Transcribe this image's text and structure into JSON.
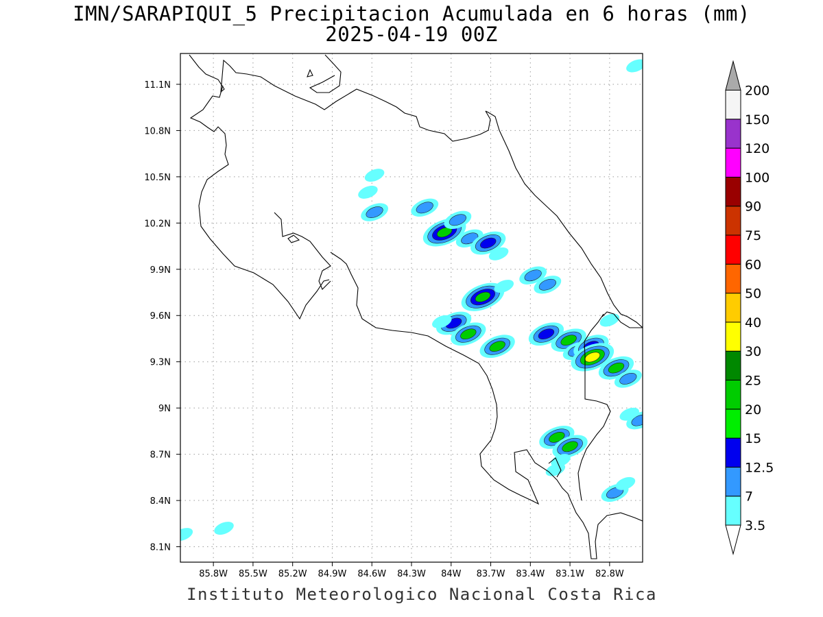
{
  "title": {
    "line1": "IMN/SARAPIQUI_5 Precipitacion Acumulada en 6 horas (mm)",
    "line2": "2025-04-19 00Z"
  },
  "footer": "Instituto Meteorologico Nacional Costa Rica",
  "axes": {
    "lon_range": [
      -86.05,
      -82.55
    ],
    "lat_range": [
      8.0,
      11.3
    ],
    "lon_ticks": [
      -85.8,
      -85.5,
      -85.2,
      -84.9,
      -84.6,
      -84.3,
      -84.0,
      -83.7,
      -83.4,
      -83.1,
      -82.8
    ],
    "lon_tick_labels": [
      "85.8W",
      "85.5W",
      "85.2W",
      "84.9W",
      "84.6W",
      "84.3W",
      "84W",
      "83.7W",
      "83.4W",
      "83.1W",
      "82.8W"
    ],
    "lat_ticks": [
      8.1,
      8.4,
      8.7,
      9.0,
      9.3,
      9.6,
      9.9,
      10.2,
      10.5,
      10.8,
      11.1
    ],
    "lat_tick_labels": [
      "8.1N",
      "8.4N",
      "8.7N",
      "9N",
      "9.3N",
      "9.6N",
      "9.9N",
      "10.2N",
      "10.5N",
      "10.8N",
      "11.1N"
    ],
    "grid": "dotted"
  },
  "colorbar": {
    "label_values": [
      "3.5",
      "7",
      "12.5",
      "15",
      "20",
      "25",
      "30",
      "40",
      "50",
      "60",
      "75",
      "90",
      "100",
      "120",
      "150",
      "200"
    ],
    "colors": [
      "#66ffff",
      "#3399ff",
      "#0000ee",
      "#00ee00",
      "#00cc00",
      "#008800",
      "#ffff00",
      "#ffcc00",
      "#ff6600",
      "#ff0000",
      "#cc3300",
      "#990000",
      "#ff00ff",
      "#9933cc",
      "#f5f5f5",
      "#aaaaaa"
    ],
    "below_color": "#ffffff",
    "above_color": "#aaaaaa"
  },
  "precip_cells": [
    {
      "lon": -84.05,
      "lat": 10.14,
      "levels": [
        3.5,
        7,
        12.5,
        20
      ]
    },
    {
      "lon": -84.2,
      "lat": 10.3,
      "levels": [
        3.5,
        7
      ]
    },
    {
      "lon": -83.95,
      "lat": 10.22,
      "levels": [
        3.5,
        7
      ]
    },
    {
      "lon": -83.86,
      "lat": 10.1,
      "levels": [
        3.5,
        7
      ]
    },
    {
      "lon": -83.72,
      "lat": 10.07,
      "levels": [
        3.5,
        7,
        12.5
      ]
    },
    {
      "lon": -83.64,
      "lat": 10.0,
      "levels": [
        3.5
      ]
    },
    {
      "lon": -84.58,
      "lat": 10.51,
      "levels": [
        3.5
      ]
    },
    {
      "lon": -84.63,
      "lat": 10.4,
      "levels": [
        3.5
      ]
    },
    {
      "lon": -84.58,
      "lat": 10.27,
      "levels": [
        3.5,
        7
      ]
    },
    {
      "lon": -83.76,
      "lat": 9.72,
      "levels": [
        3.5,
        7,
        12.5,
        20
      ]
    },
    {
      "lon": -83.6,
      "lat": 9.79,
      "levels": [
        3.5
      ]
    },
    {
      "lon": -83.38,
      "lat": 9.86,
      "levels": [
        3.5,
        7
      ]
    },
    {
      "lon": -83.27,
      "lat": 9.8,
      "levels": [
        3.5,
        7
      ]
    },
    {
      "lon": -83.98,
      "lat": 9.55,
      "levels": [
        3.5,
        7,
        12.5
      ]
    },
    {
      "lon": -84.07,
      "lat": 9.56,
      "levels": [
        3.5
      ]
    },
    {
      "lon": -83.87,
      "lat": 9.48,
      "levels": [
        3.5,
        7,
        20
      ]
    },
    {
      "lon": -83.65,
      "lat": 9.4,
      "levels": [
        3.5,
        7,
        20
      ]
    },
    {
      "lon": -83.28,
      "lat": 9.48,
      "levels": [
        3.5,
        7,
        12.5
      ]
    },
    {
      "lon": -83.11,
      "lat": 9.44,
      "levels": [
        3.5,
        7,
        20
      ]
    },
    {
      "lon": -83.05,
      "lat": 9.37,
      "levels": [
        3.5,
        7
      ]
    },
    {
      "lon": -82.94,
      "lat": 9.4,
      "levels": [
        3.5,
        7,
        12.5
      ]
    },
    {
      "lon": -82.93,
      "lat": 9.33,
      "levels": [
        3.5,
        7,
        20,
        30
      ]
    },
    {
      "lon": -82.75,
      "lat": 9.26,
      "levels": [
        3.5,
        7,
        20
      ]
    },
    {
      "lon": -82.66,
      "lat": 9.19,
      "levels": [
        3.5,
        7
      ]
    },
    {
      "lon": -82.8,
      "lat": 9.57,
      "levels": [
        3.5
      ]
    },
    {
      "lon": -82.57,
      "lat": 8.92,
      "levels": [
        3.5,
        7
      ]
    },
    {
      "lon": -82.65,
      "lat": 8.96,
      "levels": [
        3.5
      ]
    },
    {
      "lon": -83.2,
      "lat": 8.81,
      "levels": [
        3.5,
        7,
        20
      ]
    },
    {
      "lon": -83.1,
      "lat": 8.75,
      "levels": [
        3.5,
        7,
        20
      ]
    },
    {
      "lon": -83.21,
      "lat": 8.6,
      "levels": [
        3.5
      ]
    },
    {
      "lon": -83.17,
      "lat": 8.66,
      "levels": [
        3.5
      ]
    },
    {
      "lon": -82.76,
      "lat": 8.45,
      "levels": [
        3.5,
        7
      ]
    },
    {
      "lon": -82.68,
      "lat": 8.51,
      "levels": [
        3.5
      ]
    },
    {
      "lon": -85.72,
      "lat": 8.22,
      "levels": [
        3.5
      ]
    },
    {
      "lon": -86.03,
      "lat": 8.18,
      "levels": [
        3.5
      ]
    },
    {
      "lon": -82.6,
      "lat": 11.22,
      "levels": [
        3.5
      ]
    }
  ]
}
